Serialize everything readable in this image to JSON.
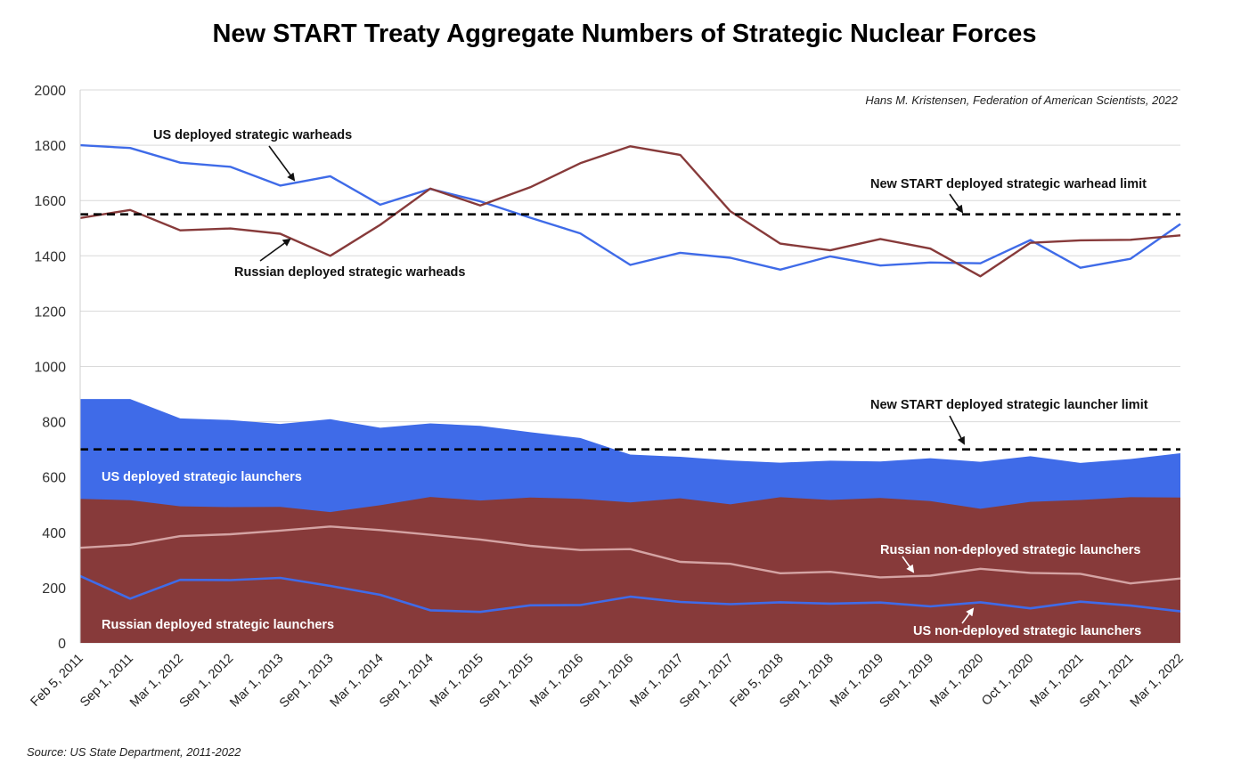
{
  "title": "New START Treaty Aggregate Numbers of Strategic Nuclear Forces",
  "credit": "Hans M. Kristensen, Federation of American Scientists, 2022",
  "source": "Source: US State Department, 2011-2022",
  "colors": {
    "us": "#3f6be8",
    "russia": "#873a3a",
    "russia_nondeployed_line": "#d4a3a3",
    "limit": "#000000"
  },
  "chart_data": {
    "type": "line",
    "categories": [
      "Feb 5, 2011",
      "Sep 1, 2011",
      "Mar 1, 2012",
      "Sep 1, 2012",
      "Mar 1, 2013",
      "Sep 1, 2013",
      "Mar 1, 2014",
      "Sep 1, 2014",
      "Mar 1, 2015",
      "Sep 1, 2015",
      "Mar 1, 2016",
      "Sep 1, 2016",
      "Mar 1, 2017",
      "Sep 1, 2017",
      "Feb 5, 2018",
      "Sep 1, 2018",
      "Mar 1, 2019",
      "Sep 1, 2019",
      "Mar 1, 2020",
      "Oct 1, 2020",
      "Mar 1, 2021",
      "Sep 1, 2021",
      "Mar 1, 2022"
    ],
    "ylim": [
      0,
      2000
    ],
    "yticks": [
      0,
      200,
      400,
      600,
      800,
      1000,
      1200,
      1400,
      1600,
      1800,
      2000
    ],
    "grid": true,
    "series": [
      {
        "name": "US deployed strategic warheads",
        "type": "line",
        "color": "#3f6be8",
        "values": [
          1800,
          1790,
          1737,
          1722,
          1654,
          1688,
          1585,
          1642,
          1597,
          1538,
          1481,
          1367,
          1411,
          1393,
          1350,
          1398,
          1365,
          1376,
          1373,
          1457,
          1357,
          1389,
          1515
        ]
      },
      {
        "name": "Russian deployed strategic warheads",
        "type": "line",
        "color": "#873a3a",
        "values": [
          1537,
          1566,
          1492,
          1499,
          1480,
          1400,
          1512,
          1643,
          1582,
          1648,
          1735,
          1796,
          1765,
          1561,
          1444,
          1420,
          1461,
          1426,
          1326,
          1447,
          1456,
          1458,
          1474
        ]
      },
      {
        "name": "US deployed strategic launchers",
        "type": "area",
        "color": "#3f6be8",
        "values": [
          882,
          882,
          812,
          806,
          792,
          809,
          778,
          794,
          785,
          762,
          741,
          681,
          673,
          660,
          652,
          659,
          656,
          668,
          655,
          675,
          651,
          665,
          686
        ]
      },
      {
        "name": "Russian deployed strategic launchers",
        "type": "area",
        "color": "#873a3a",
        "values": [
          521,
          516,
          494,
          491,
          492,
          473,
          498,
          528,
          515,
          526,
          521,
          508,
          523,
          501,
          527,
          517,
          524,
          513,
          485,
          510,
          517,
          527,
          526
        ]
      },
      {
        "name": "Russian non-deployed strategic launchers",
        "type": "line",
        "color": "#d4a3a3",
        "values": [
          344,
          355,
          386,
          393,
          406,
          421,
          408,
          391,
          374,
          351,
          336,
          339,
          293,
          286,
          252,
          257,
          237,
          243,
          268,
          253,
          250,
          215,
          233
        ]
      },
      {
        "name": "US non-deployed strategic launchers",
        "type": "line",
        "color": "#3f6be8",
        "values": [
          242,
          160,
          228,
          227,
          235,
          206,
          174,
          118,
          112,
          136,
          137,
          167,
          148,
          140,
          147,
          142,
          146,
          132,
          147,
          125,
          149,
          135,
          114
        ]
      }
    ],
    "limits": [
      {
        "label": "New START deployed strategic warhead limit",
        "value": 1550
      },
      {
        "label": "New START deployed strategic launcher limit",
        "value": 700
      }
    ]
  }
}
